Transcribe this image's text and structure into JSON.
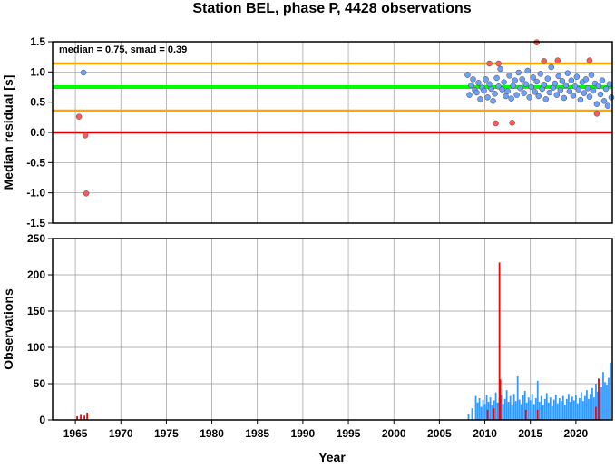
{
  "colors": {
    "background": "#ffffff",
    "grid": "#9a9a9a",
    "median_line": "#00ff00",
    "smad_lines": "#ffa500",
    "zero_line": "#dd0000",
    "point_blue": "#6ca0ff",
    "point_red": "#ff5a5a",
    "bar_blue": "#3399ff",
    "bar_red": "#ff0000"
  },
  "chart_data": [
    {
      "type": "scatter",
      "title": "Station BEL, phase P, 4428 observations",
      "ylabel": "Median residual [s]",
      "annotation": "median = 0.75, smad = 0.39",
      "xlim": [
        1962.5,
        2024.0
      ],
      "ylim": [
        -1.5,
        1.5
      ],
      "yticks": [
        -1.5,
        -1.0,
        -0.5,
        0.0,
        0.5,
        1.0,
        1.5
      ],
      "ytick_labels": [
        "-1.5",
        "-1.0",
        "-0.5",
        "0.0",
        "0.5",
        "1.0",
        "1.5"
      ],
      "grid": true,
      "reference_lines": [
        {
          "name": "median",
          "y": 0.75,
          "color": "#00ff00"
        },
        {
          "name": "median+smad",
          "y": 1.14,
          "color": "#ffa500"
        },
        {
          "name": "median-smad",
          "y": 0.36,
          "color": "#ffa500"
        },
        {
          "name": "zero",
          "y": 0.0,
          "color": "#dd0000"
        }
      ],
      "series": [
        {
          "color": "#6ca0ff",
          "points": [
            [
              1965.9,
              0.99
            ],
            [
              2008.1,
              0.95
            ],
            [
              2008.3,
              0.62
            ],
            [
              2008.5,
              0.78
            ],
            [
              2008.7,
              0.88
            ],
            [
              2008.9,
              0.7
            ],
            [
              2009.1,
              0.66
            ],
            [
              2009.3,
              0.82
            ],
            [
              2009.5,
              0.55
            ],
            [
              2009.7,
              0.74
            ],
            [
              2009.9,
              0.69
            ],
            [
              2010.1,
              0.88
            ],
            [
              2010.3,
              0.58
            ],
            [
              2010.5,
              0.8
            ],
            [
              2010.7,
              0.72
            ],
            [
              2010.9,
              0.52
            ],
            [
              2011.1,
              0.64
            ],
            [
              2011.3,
              0.9
            ],
            [
              2011.5,
              0.76
            ],
            [
              2011.7,
              1.05
            ],
            [
              2011.9,
              0.71
            ],
            [
              2012.1,
              0.83
            ],
            [
              2012.3,
              0.6
            ],
            [
              2012.5,
              0.68
            ],
            [
              2012.7,
              0.94
            ],
            [
              2012.9,
              0.56
            ],
            [
              2013.1,
              0.77
            ],
            [
              2013.3,
              0.86
            ],
            [
              2013.5,
              0.62
            ],
            [
              2013.7,
              0.99
            ],
            [
              2013.9,
              0.73
            ],
            [
              2014.1,
              0.88
            ],
            [
              2014.3,
              0.65
            ],
            [
              2014.5,
              0.8
            ],
            [
              2014.7,
              1.02
            ],
            [
              2014.9,
              0.58
            ],
            [
              2015.1,
              0.75
            ],
            [
              2015.3,
              0.91
            ],
            [
              2015.5,
              0.67
            ],
            [
              2015.7,
              0.84
            ],
            [
              2015.9,
              0.6
            ],
            [
              2016.1,
              0.97
            ],
            [
              2016.3,
              0.72
            ],
            [
              2016.5,
              0.79
            ],
            [
              2016.7,
              0.55
            ],
            [
              2016.9,
              0.89
            ],
            [
              2017.1,
              0.66
            ],
            [
              2017.3,
              1.08
            ],
            [
              2017.5,
              0.74
            ],
            [
              2017.7,
              0.81
            ],
            [
              2017.9,
              0.62
            ],
            [
              2018.1,
              0.93
            ],
            [
              2018.3,
              0.7
            ],
            [
              2018.5,
              0.85
            ],
            [
              2018.7,
              0.57
            ],
            [
              2018.9,
              0.78
            ],
            [
              2019.1,
              0.98
            ],
            [
              2019.3,
              0.68
            ],
            [
              2019.5,
              0.86
            ],
            [
              2019.7,
              0.61
            ],
            [
              2019.9,
              0.76
            ],
            [
              2020.1,
              0.92
            ],
            [
              2020.3,
              0.71
            ],
            [
              2020.5,
              0.54
            ],
            [
              2020.7,
              0.83
            ],
            [
              2020.9,
              0.65
            ],
            [
              2021.1,
              0.88
            ],
            [
              2021.3,
              0.73
            ],
            [
              2021.5,
              0.59
            ],
            [
              2021.7,
              0.95
            ],
            [
              2021.9,
              0.69
            ],
            [
              2022.1,
              0.81
            ],
            [
              2022.3,
              0.47
            ],
            [
              2022.5,
              0.77
            ],
            [
              2022.7,
              0.63
            ],
            [
              2022.9,
              0.86
            ],
            [
              2023.1,
              0.52
            ],
            [
              2023.3,
              0.72
            ],
            [
              2023.5,
              0.44
            ],
            [
              2023.7,
              0.8
            ],
            [
              2023.9,
              0.58
            ]
          ]
        },
        {
          "color": "#ff5a5a",
          "points": [
            [
              1965.4,
              0.26
            ],
            [
              1966.1,
              -0.05
            ],
            [
              1966.2,
              -1.01
            ],
            [
              2010.5,
              1.14
            ],
            [
              2011.2,
              0.15
            ],
            [
              2011.5,
              1.14
            ],
            [
              2013.0,
              0.16
            ],
            [
              2015.7,
              1.49
            ],
            [
              2016.5,
              1.18
            ],
            [
              2018.0,
              1.19
            ],
            [
              2021.5,
              1.19
            ],
            [
              2022.3,
              0.31
            ]
          ]
        }
      ]
    },
    {
      "type": "bar",
      "xlabel": "Year",
      "ylabel": "Observations",
      "xlim": [
        1962.5,
        2024.0
      ],
      "ylim": [
        0,
        250
      ],
      "xticks": [
        1965,
        1970,
        1975,
        1980,
        1985,
        1990,
        1995,
        2000,
        2005,
        2010,
        2015,
        2020
      ],
      "xtick_labels": [
        "1965",
        "1970",
        "1975",
        "1980",
        "1985",
        "1990",
        "1995",
        "2000",
        "2005",
        "2010",
        "2015",
        "2020"
      ],
      "yticks": [
        0,
        50,
        100,
        150,
        200,
        250
      ],
      "ytick_labels": [
        "0",
        "50",
        "100",
        "150",
        "200",
        "250"
      ],
      "grid": true,
      "series": [
        {
          "color": "#3399ff",
          "bars": [
            [
              2008.2,
              8
            ],
            [
              2008.6,
              16
            ],
            [
              2009.0,
              33
            ],
            [
              2009.2,
              24
            ],
            [
              2009.4,
              30
            ],
            [
              2009.6,
              18
            ],
            [
              2009.8,
              28
            ],
            [
              2010.0,
              22
            ],
            [
              2010.2,
              35
            ],
            [
              2010.4,
              25
            ],
            [
              2010.6,
              31
            ],
            [
              2010.8,
              20
            ],
            [
              2011.0,
              27
            ],
            [
              2011.2,
              38
            ],
            [
              2011.4,
              24
            ],
            [
              2011.6,
              30
            ],
            [
              2011.8,
              34
            ],
            [
              2012.0,
              22
            ],
            [
              2012.2,
              29
            ],
            [
              2012.4,
              41
            ],
            [
              2012.6,
              25
            ],
            [
              2012.8,
              33
            ],
            [
              2013.0,
              20
            ],
            [
              2013.2,
              36
            ],
            [
              2013.4,
              26
            ],
            [
              2013.6,
              60
            ],
            [
              2013.8,
              28
            ],
            [
              2014.0,
              22
            ],
            [
              2014.2,
              34
            ],
            [
              2014.4,
              40
            ],
            [
              2014.6,
              24
            ],
            [
              2014.8,
              31
            ],
            [
              2015.0,
              27
            ],
            [
              2015.2,
              36
            ],
            [
              2015.4,
              22
            ],
            [
              2015.6,
              30
            ],
            [
              2015.8,
              54
            ],
            [
              2016.0,
              25
            ],
            [
              2016.2,
              33
            ],
            [
              2016.4,
              21
            ],
            [
              2016.6,
              29
            ],
            [
              2016.8,
              37
            ],
            [
              2017.0,
              24
            ],
            [
              2017.2,
              31
            ],
            [
              2017.4,
              19
            ],
            [
              2017.6,
              28
            ],
            [
              2017.8,
              35
            ],
            [
              2018.0,
              23
            ],
            [
              2018.2,
              30
            ],
            [
              2018.4,
              26
            ],
            [
              2018.6,
              33
            ],
            [
              2018.8,
              21
            ],
            [
              2019.0,
              29
            ],
            [
              2019.2,
              36
            ],
            [
              2019.4,
              25
            ],
            [
              2019.6,
              32
            ],
            [
              2019.8,
              27
            ],
            [
              2020.0,
              34
            ],
            [
              2020.2,
              23
            ],
            [
              2020.4,
              30
            ],
            [
              2020.6,
              38
            ],
            [
              2020.8,
              26
            ],
            [
              2021.0,
              33
            ],
            [
              2021.2,
              41
            ],
            [
              2021.4,
              29
            ],
            [
              2021.6,
              36
            ],
            [
              2021.8,
              44
            ],
            [
              2022.0,
              31
            ],
            [
              2022.2,
              50
            ],
            [
              2022.4,
              39
            ],
            [
              2022.6,
              56
            ],
            [
              2022.8,
              45
            ],
            [
              2023.0,
              66
            ],
            [
              2023.2,
              52
            ],
            [
              2023.4,
              48
            ],
            [
              2023.6,
              58
            ],
            [
              2023.8,
              79
            ]
          ]
        },
        {
          "color": "#ff0000",
          "bars": [
            [
              1965.2,
              5
            ],
            [
              1965.6,
              7
            ],
            [
              1966.0,
              6
            ],
            [
              1966.3,
              10
            ],
            [
              2010.3,
              14
            ],
            [
              2011.0,
              16
            ],
            [
              2011.6,
              217
            ],
            [
              2011.7,
              56
            ],
            [
              2014.5,
              14
            ],
            [
              2015.8,
              14
            ],
            [
              2022.2,
              18
            ],
            [
              2022.5,
              57
            ]
          ]
        }
      ]
    }
  ]
}
